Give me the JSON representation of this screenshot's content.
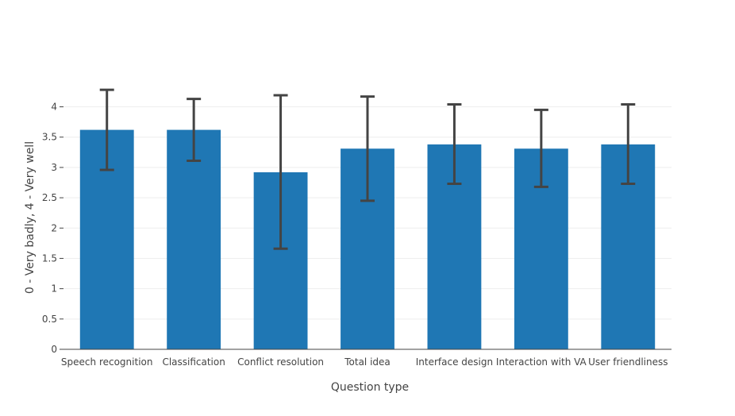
{
  "chart_data": {
    "type": "bar",
    "title": "",
    "xlabel": "Question type",
    "ylabel": "0 - Very badly, 4 - Very well",
    "ylim": [
      0,
      4.4
    ],
    "yticks": [
      0,
      0.5,
      1,
      1.5,
      2,
      2.5,
      3,
      3.5,
      4
    ],
    "ytick_labels": [
      "0",
      "0.5",
      "1",
      "1.5",
      "2",
      "2.5",
      "3",
      "3.5",
      "4"
    ],
    "grid": true,
    "legend": "none",
    "categories": [
      "Speech recognition",
      "Classification",
      "Conflict resolution",
      "Total idea",
      "Interface design",
      "Interaction with VA",
      "User friendliness"
    ],
    "values": [
      3.62,
      3.62,
      2.92,
      3.31,
      3.38,
      3.31,
      3.38
    ],
    "error_upper": [
      4.28,
      4.13,
      4.19,
      4.17,
      4.04,
      3.95,
      4.04
    ],
    "error_lower": [
      2.96,
      3.11,
      1.66,
      2.45,
      2.73,
      2.68,
      2.73
    ],
    "colors": {
      "bar": "#1f77b4",
      "error_bar": "#444444",
      "grid": "#eeeeee",
      "axis": "#444444"
    }
  }
}
